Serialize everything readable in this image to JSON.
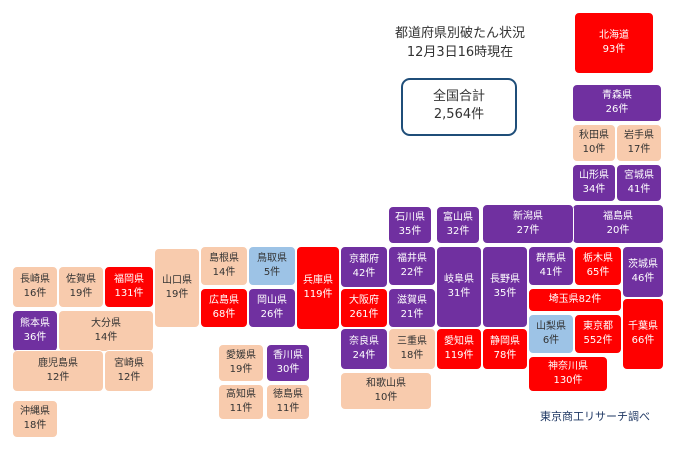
{
  "header": {
    "title_line1": "都道府県別破たん状況",
    "title_line2": "12月3日16時現在"
  },
  "total": {
    "label": "全国合計",
    "value": "2,564件"
  },
  "credit": "東京商工リサーチ調べ",
  "colors": {
    "red": "#ff0000",
    "purple": "#7030a0",
    "peach": "#f8cbad",
    "blue": "#9dc3e6",
    "total_border": "#1f4e79"
  },
  "prefectures": [
    {
      "name": "北海道",
      "count": "93件",
      "color": "red"
    },
    {
      "name": "青森県",
      "count": "26件",
      "color": "purple"
    },
    {
      "name": "秋田県",
      "count": "10件",
      "color": "peach"
    },
    {
      "name": "岩手県",
      "count": "17件",
      "color": "peach"
    },
    {
      "name": "山形県",
      "count": "34件",
      "color": "purple"
    },
    {
      "name": "宮城県",
      "count": "41件",
      "color": "purple"
    },
    {
      "name": "福島県",
      "count": "20件",
      "color": "purple"
    },
    {
      "name": "新潟県",
      "count": "27件",
      "color": "purple"
    },
    {
      "name": "石川県",
      "count": "35件",
      "color": "purple"
    },
    {
      "name": "富山県",
      "count": "32件",
      "color": "purple"
    },
    {
      "name": "長野県",
      "count": "35件",
      "color": "purple"
    },
    {
      "name": "群馬県",
      "count": "41件",
      "color": "purple"
    },
    {
      "name": "栃木県",
      "count": "65件",
      "color": "red"
    },
    {
      "name": "茨城県",
      "count": "46件",
      "color": "purple"
    },
    {
      "name": "埼玉県",
      "count": "82件",
      "color": "red"
    },
    {
      "name": "山梨県",
      "count": "6件",
      "color": "blue"
    },
    {
      "name": "東京都",
      "count": "552件",
      "color": "red"
    },
    {
      "name": "千葉県",
      "count": "66件",
      "color": "red"
    },
    {
      "name": "神奈川県",
      "count": "130件",
      "color": "red"
    },
    {
      "name": "静岡県",
      "count": "78件",
      "color": "red"
    },
    {
      "name": "愛知県",
      "count": "119件",
      "color": "red"
    },
    {
      "name": "岐阜県",
      "count": "31件",
      "color": "purple"
    },
    {
      "name": "福井県",
      "count": "22件",
      "color": "purple"
    },
    {
      "name": "滋賀県",
      "count": "21件",
      "color": "purple"
    },
    {
      "name": "三重県",
      "count": "18件",
      "color": "peach"
    },
    {
      "name": "京都府",
      "count": "42件",
      "color": "purple"
    },
    {
      "name": "大阪府",
      "count": "261件",
      "color": "red"
    },
    {
      "name": "奈良県",
      "count": "24件",
      "color": "purple"
    },
    {
      "name": "和歌山県",
      "count": "10件",
      "color": "peach"
    },
    {
      "name": "兵庫県",
      "count": "119件",
      "color": "red"
    },
    {
      "name": "鳥取県",
      "count": "5件",
      "color": "blue"
    },
    {
      "name": "岡山県",
      "count": "26件",
      "color": "purple"
    },
    {
      "name": "島根県",
      "count": "14件",
      "color": "peach"
    },
    {
      "name": "広島県",
      "count": "68件",
      "color": "red"
    },
    {
      "name": "山口県",
      "count": "19件",
      "color": "peach"
    },
    {
      "name": "香川県",
      "count": "30件",
      "color": "purple"
    },
    {
      "name": "愛媛県",
      "count": "19件",
      "color": "peach"
    },
    {
      "name": "高知県",
      "count": "11件",
      "color": "peach"
    },
    {
      "name": "徳島県",
      "count": "11件",
      "color": "peach"
    },
    {
      "name": "福岡県",
      "count": "131件",
      "color": "red"
    },
    {
      "name": "佐賀県",
      "count": "19件",
      "color": "peach"
    },
    {
      "name": "長崎県",
      "count": "16件",
      "color": "peach"
    },
    {
      "name": "熊本県",
      "count": "36件",
      "color": "purple"
    },
    {
      "name": "大分県",
      "count": "14件",
      "color": "peach"
    },
    {
      "name": "宮崎県",
      "count": "12件",
      "color": "peach"
    },
    {
      "name": "鹿児島県",
      "count": "12件",
      "color": "peach"
    },
    {
      "name": "沖縄県",
      "count": "18件",
      "color": "peach"
    }
  ]
}
